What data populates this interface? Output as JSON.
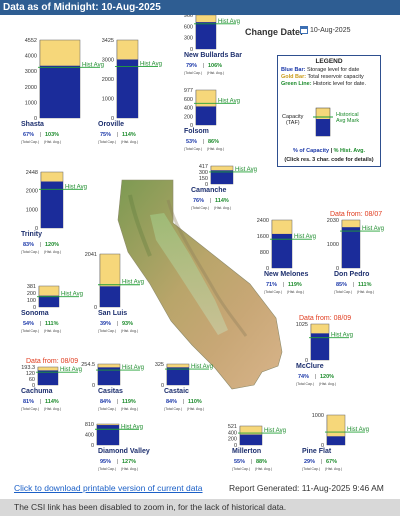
{
  "header": {
    "title": "Data as of Midnight: 10-Aug-2025"
  },
  "date_picker": {
    "label": "Change Date:",
    "value": "10-Aug-2025",
    "icon": "calendar-icon"
  },
  "legend": {
    "title": "LEGEND",
    "blue_key": "Blue Bar:",
    "blue_text": "Storage level for date",
    "gold_key": "Gold Bar:",
    "gold_text": "Total reservoir capacity",
    "green_key": "Green Line:",
    "green_text": "Historic level for date.",
    "capacity_label": "Capacity (TAF)",
    "hist_label": "Historical Avg Mark",
    "pct_cap": "% of Capacity",
    "sep": "|",
    "pct_hist": "% Hist. Avg.",
    "click_note": "(Click res. 3 char. code for details)"
  },
  "common": {
    "hist_avg": "Hist Avg",
    "total_cap": "(Total Cap.)",
    "hist_avg_small": "(Hist. Avg.)"
  },
  "colors": {
    "header": "#2e5d92",
    "storage": "#1b2c9a",
    "capacity": "#f6d77a",
    "hist_line": "#22a035",
    "stale_note": "#e03b1e"
  },
  "reservoirs": [
    {
      "name": "Shasta",
      "pct_cap": "67%",
      "pct_hist": "103%",
      "ticks": [
        "4552",
        "4000",
        "3000",
        "2000",
        "1000",
        "0"
      ],
      "storage_frac": 0.67,
      "hist_frac": 0.65
    },
    {
      "name": "Oroville",
      "pct_cap": "75%",
      "pct_hist": "114%",
      "ticks": [
        "3425",
        "3000",
        "2000",
        "1000",
        "0"
      ],
      "storage_frac": 0.75,
      "hist_frac": 0.66
    },
    {
      "name": "New Bullards Bar",
      "pct_cap": "79%",
      "pct_hist": "106%",
      "ticks": [
        "966",
        "600",
        "300",
        "0"
      ],
      "storage_frac": 0.79,
      "hist_frac": 0.74
    },
    {
      "name": "Folsom",
      "pct_cap": "53%",
      "pct_hist": "86%",
      "ticks": [
        "977",
        "600",
        "400",
        "200",
        "0"
      ],
      "storage_frac": 0.53,
      "hist_frac": 0.62
    },
    {
      "name": "Trinity",
      "pct_cap": "83%",
      "pct_hist": "120%",
      "ticks": [
        "2448",
        "2000",
        "1000",
        "0"
      ],
      "storage_frac": 0.83,
      "hist_frac": 0.69
    },
    {
      "name": "Camanche",
      "pct_cap": "76%",
      "pct_hist": "114%",
      "ticks": [
        "417",
        "300",
        "150",
        "0"
      ],
      "storage_frac": 0.76,
      "hist_frac": 0.67
    },
    {
      "name": "New Melones",
      "pct_cap": "71%",
      "pct_hist": "119%",
      "ticks": [
        "2400",
        "1600",
        "800",
        "0"
      ],
      "storage_frac": 0.71,
      "hist_frac": 0.6
    },
    {
      "name": "Don Pedro",
      "pct_cap": "85%",
      "pct_hist": "111%",
      "ticks": [
        "2030",
        "1000",
        "0"
      ],
      "storage_frac": 0.85,
      "hist_frac": 0.77,
      "note": "Data from: 08/07"
    },
    {
      "name": "Sonoma",
      "pct_cap": "54%",
      "pct_hist": "111%",
      "ticks": [
        "381",
        "200",
        "100",
        "0"
      ],
      "storage_frac": 0.54,
      "hist_frac": 0.49
    },
    {
      "name": "San Luis",
      "pct_cap": "39%",
      "pct_hist": "93%",
      "ticks": [
        "2041",
        "0"
      ],
      "storage_frac": 0.39,
      "hist_frac": 0.42
    },
    {
      "name": "McClure",
      "pct_cap": "74%",
      "pct_hist": "120%",
      "ticks": [
        "1025",
        "0"
      ],
      "storage_frac": 0.74,
      "hist_frac": 0.62,
      "note": "Data from: 08/09"
    },
    {
      "name": "Cachuma",
      "pct_cap": "81%",
      "pct_hist": "114%",
      "ticks": [
        "193.3",
        "120",
        "60",
        "0"
      ],
      "storage_frac": 0.81,
      "hist_frac": 0.71,
      "note": "Data from: 08/09"
    },
    {
      "name": "Casitas",
      "pct_cap": "84%",
      "pct_hist": "119%",
      "ticks": [
        "254.5",
        "0"
      ],
      "storage_frac": 0.84,
      "hist_frac": 0.71
    },
    {
      "name": "Castaic",
      "pct_cap": "84%",
      "pct_hist": "110%",
      "ticks": [
        "325",
        "0"
      ],
      "storage_frac": 0.84,
      "hist_frac": 0.76
    },
    {
      "name": "Diamond Valley",
      "pct_cap": "95%",
      "pct_hist": "127%",
      "ticks": [
        "810",
        "400",
        "0"
      ],
      "storage_frac": 0.95,
      "hist_frac": 0.75
    },
    {
      "name": "Millerton",
      "pct_cap": "55%",
      "pct_hist": "88%",
      "ticks": [
        "521",
        "400",
        "200",
        "0"
      ],
      "storage_frac": 0.55,
      "hist_frac": 0.63
    },
    {
      "name": "Pine Flat",
      "pct_cap": "29%",
      "pct_hist": "67%",
      "ticks": [
        "1000",
        "0"
      ],
      "storage_frac": 0.29,
      "hist_frac": 0.43
    }
  ],
  "footer": {
    "download_link": "Click to download printable version of current data",
    "report_generated": "Report Generated:  11-Aug-2025 9:46 AM",
    "note": "The CSI link has been disabled to zoom in, for the lack of historical data."
  }
}
